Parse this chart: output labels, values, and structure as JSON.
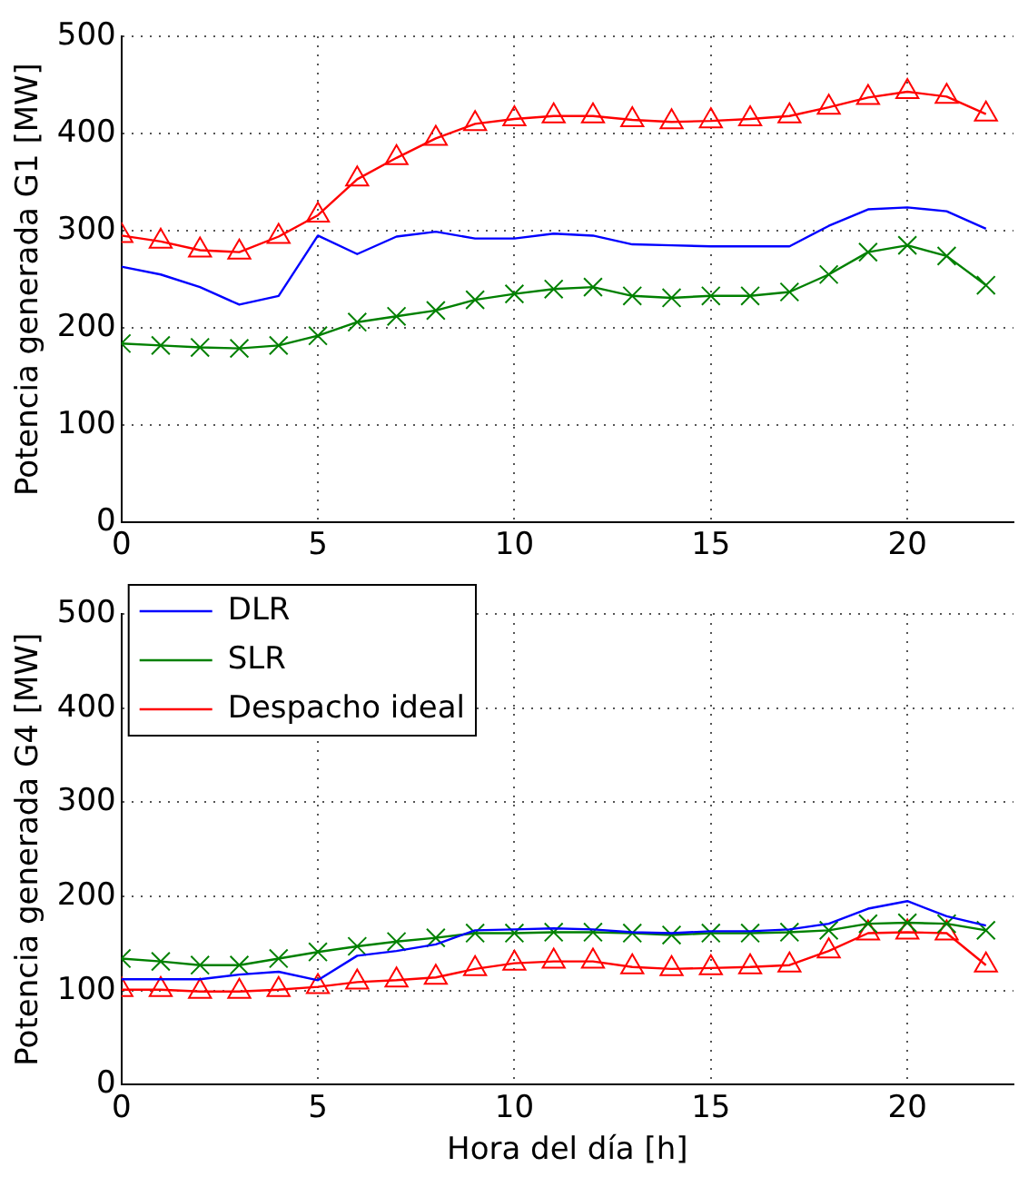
{
  "chart_data": [
    {
      "type": "line",
      "ylabel": "Potencia generada G1 [MW]",
      "x": [
        0,
        1,
        2,
        3,
        4,
        5,
        6,
        7,
        8,
        9,
        10,
        11,
        12,
        13,
        14,
        15,
        16,
        17,
        18,
        19,
        20,
        21,
        22
      ],
      "xlim": [
        0,
        22.7
      ],
      "xticks": [
        0,
        5,
        10,
        15,
        20
      ],
      "ylim": [
        0,
        500
      ],
      "yticks": [
        0,
        100,
        200,
        300,
        400,
        500
      ],
      "grid": true,
      "legend": false,
      "line_style": "solid",
      "series": [
        {
          "color": "#0000ff",
          "marker": "none",
          "values": [
            263,
            255,
            242,
            224,
            233,
            295,
            276,
            294,
            299,
            292,
            292,
            297,
            295,
            286,
            285,
            284,
            284,
            284,
            305,
            322,
            324,
            320,
            302
          ]
        },
        {
          "color": "#008000",
          "marker": "cross",
          "values": [
            184,
            182,
            180,
            179,
            182,
            192,
            206,
            212,
            218,
            229,
            235,
            240,
            242,
            233,
            231,
            233,
            233,
            237,
            255,
            278,
            285,
            274,
            244
          ]
        },
        {
          "color": "#ff0000",
          "marker": "triangle",
          "values": [
            295,
            289,
            280,
            278,
            294,
            316,
            353,
            375,
            395,
            410,
            415,
            418,
            418,
            414,
            412,
            413,
            415,
            418,
            427,
            437,
            443,
            438,
            420
          ]
        }
      ]
    },
    {
      "type": "line",
      "ylabel": "Potencia generada G4 [MW]",
      "xlabel": "Hora del día [h]",
      "x": [
        0,
        1,
        2,
        3,
        4,
        5,
        6,
        7,
        8,
        9,
        10,
        11,
        12,
        13,
        14,
        15,
        16,
        17,
        18,
        19,
        20,
        21,
        22
      ],
      "xlim": [
        0,
        22.7
      ],
      "xticks": [
        0,
        5,
        10,
        15,
        20
      ],
      "ylim": [
        0,
        500
      ],
      "yticks": [
        0,
        100,
        200,
        300,
        400,
        500
      ],
      "grid": true,
      "legend": "top left",
      "line_style": "solid",
      "series": [
        {
          "name": "DLR",
          "color": "#0000ff",
          "marker": "none",
          "values": [
            112,
            112,
            112,
            117,
            120,
            111,
            137,
            142,
            149,
            164,
            165,
            166,
            165,
            162,
            161,
            163,
            163,
            165,
            171,
            187,
            195,
            179,
            169
          ]
        },
        {
          "name": "SLR",
          "color": "#008000",
          "marker": "cross",
          "values": [
            134,
            131,
            127,
            127,
            134,
            141,
            147,
            152,
            156,
            161,
            161,
            162,
            162,
            161,
            159,
            161,
            161,
            162,
            164,
            171,
            172,
            171,
            164
          ]
        },
        {
          "name": "Despacho ideal",
          "color": "#ff0000",
          "marker": "triangle",
          "values": [
            101,
            101,
            99,
            99,
            101,
            104,
            109,
            111,
            114,
            123,
            129,
            131,
            131,
            125,
            123,
            124,
            125,
            127,
            142,
            161,
            162,
            161,
            127
          ]
        }
      ]
    }
  ]
}
